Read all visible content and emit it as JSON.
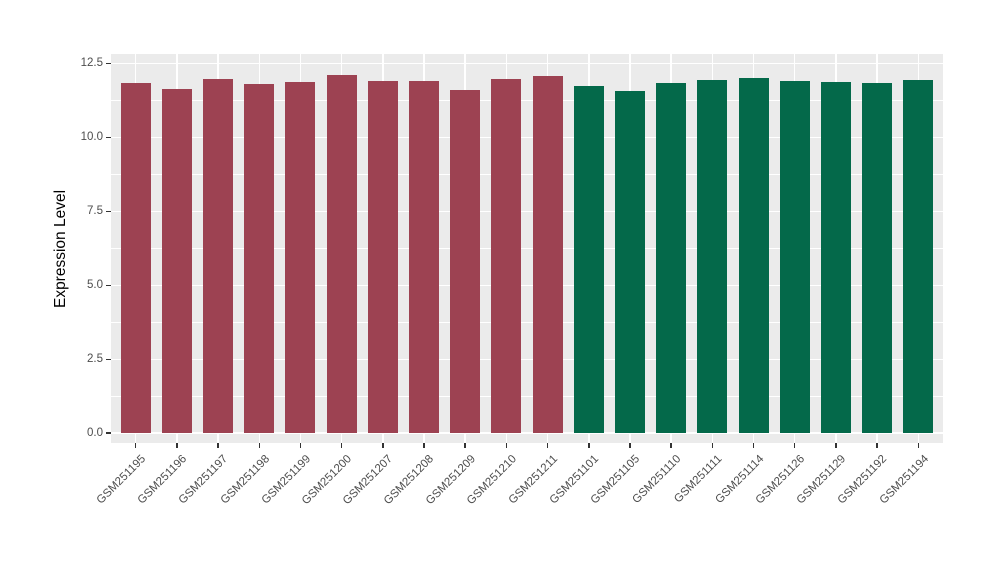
{
  "chart_data": {
    "type": "bar",
    "title": "",
    "xlabel": "",
    "ylabel": "Expression Level",
    "categories": [
      "GSM251195",
      "GSM251196",
      "GSM251197",
      "GSM251198",
      "GSM251199",
      "GSM251200",
      "GSM251207",
      "GSM251208",
      "GSM251209",
      "GSM251210",
      "GSM251211",
      "GSM251101",
      "GSM251105",
      "GSM251110",
      "GSM251111",
      "GSM251114",
      "GSM251126",
      "GSM251129",
      "GSM251192",
      "GSM251194"
    ],
    "values": [
      11.83,
      11.64,
      11.98,
      11.82,
      11.88,
      12.12,
      11.92,
      11.9,
      11.61,
      11.98,
      12.09,
      11.75,
      11.57,
      11.85,
      11.94,
      12.0,
      11.92,
      11.89,
      11.85,
      11.94
    ],
    "bar_colors": [
      "#9D4252",
      "#9D4252",
      "#9D4252",
      "#9D4252",
      "#9D4252",
      "#9D4252",
      "#9D4252",
      "#9D4252",
      "#9D4252",
      "#9D4252",
      "#9D4252",
      "#04694A",
      "#04694A",
      "#04694A",
      "#04694A",
      "#04694A",
      "#04694A",
      "#04694A",
      "#04694A",
      "#04694A"
    ],
    "ylim": [
      -0.33,
      12.82
    ],
    "yticks_major": [
      0,
      2.5,
      5,
      7.5,
      10,
      12.5
    ],
    "ytick_labels": [
      "0.0",
      "2.5",
      "5.0",
      "7.5",
      "10.0",
      "12.5"
    ],
    "yticks_minor": [
      1.25,
      3.75,
      6.25,
      8.75,
      11.25
    ],
    "x_padding": 0.6,
    "bar_width_fraction": 0.73,
    "grid": "major+minor",
    "legend_position": "none"
  },
  "style": {
    "background": "#FFFFFF",
    "panel_background": "#EBEBEB",
    "grid_color": "#FFFFFF",
    "axis_text_color": "#4D4D4D",
    "axis_title_color": "#000000",
    "tick_mark_color": "#333333",
    "bar_color_group1": "#9D4252",
    "bar_color_group2": "#04694A"
  }
}
